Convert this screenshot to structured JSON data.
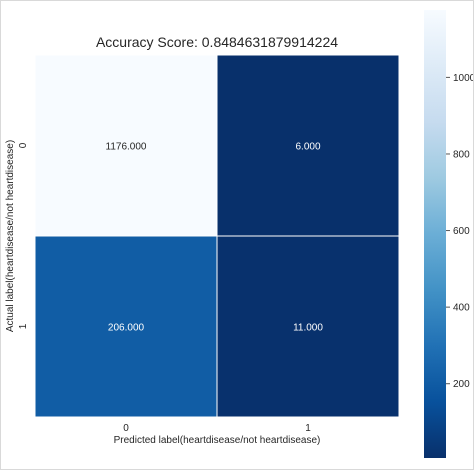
{
  "chart_data": {
    "type": "heatmap",
    "title": "Accuracy Score: 0.8484631879914224",
    "xlabel": "Predicted label(heartdisease/not heartdisease)",
    "ylabel": "Actual label(heartdisease/not heartdisease)",
    "x_categories": [
      "0",
      "1"
    ],
    "y_categories": [
      "0",
      "1"
    ],
    "matrix": [
      [
        1176,
        6
      ],
      [
        206,
        11
      ]
    ],
    "cell_labels": [
      [
        "1176.000",
        "6.000"
      ],
      [
        "206.000",
        "11.000"
      ]
    ],
    "colormap": "Blues",
    "colorbar": {
      "range": [
        6,
        1176
      ],
      "ticks": [
        200,
        400,
        600,
        800,
        1000
      ],
      "tick_labels": [
        "200",
        "400",
        "600",
        "800",
        "1000"
      ]
    },
    "grid": false,
    "legend": "colorbar-right"
  }
}
